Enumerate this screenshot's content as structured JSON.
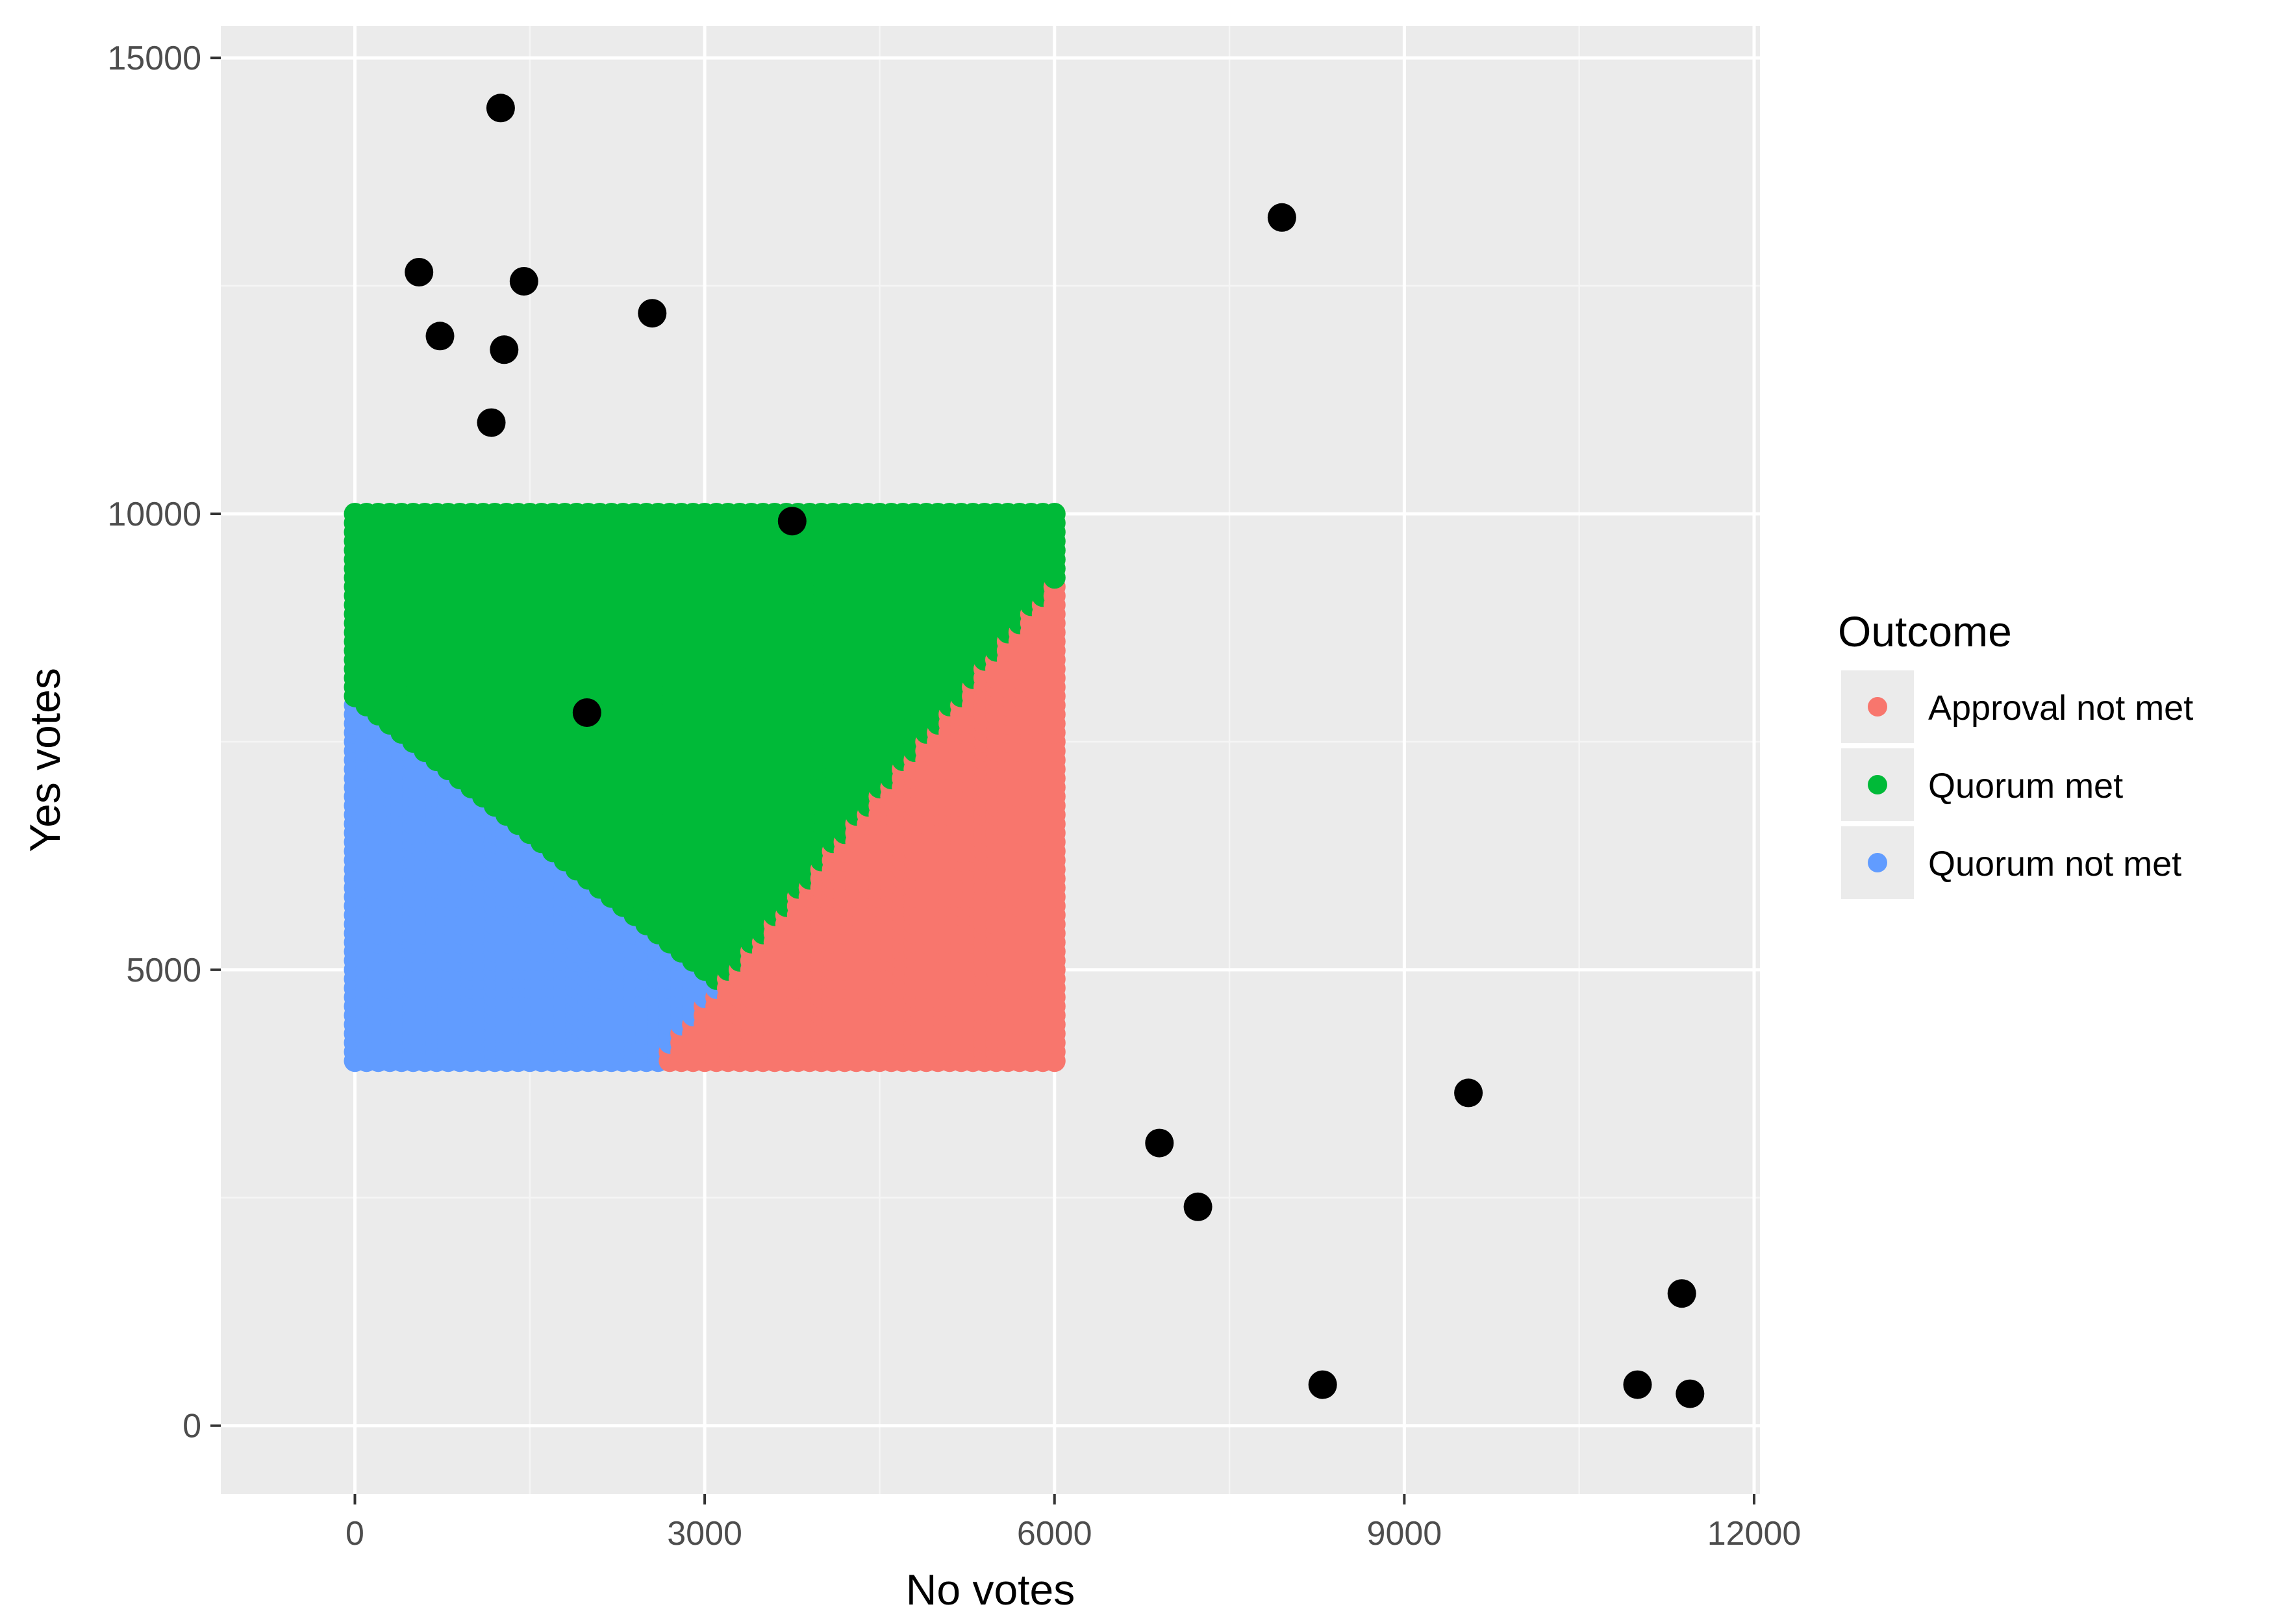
{
  "chart_data": {
    "type": "scatter",
    "xlabel": "No votes",
    "ylabel": "Yes votes",
    "xlim": [
      -1150,
      12050
    ],
    "ylim": [
      -750,
      15350
    ],
    "x_ticks": [
      0,
      3000,
      6000,
      9000,
      12000
    ],
    "x_tick_labels": [
      "0",
      "3000",
      "6000",
      "9000",
      "12000"
    ],
    "y_ticks": [
      0,
      5000,
      10000,
      15000
    ],
    "y_tick_labels": [
      "0",
      "5000",
      "10000",
      "15000"
    ],
    "grid": true,
    "legend": {
      "title": "Outcome",
      "placement": "right",
      "entries": [
        {
          "label": "Approval not met",
          "color": "#F8766D"
        },
        {
          "label": "Quorum met",
          "color": "#00BA38"
        },
        {
          "label": "Quorum not met",
          "color": "#619CFF"
        }
      ]
    },
    "region_grid": {
      "description_of_rule_only": false,
      "x_range": [
        0,
        6000
      ],
      "y_range": [
        4000,
        10000
      ],
      "step": 100,
      "boundary_approval": "no votes greater than 0.65 x yes votes gives Approval not met",
      "boundary_quorum": "yes + no below 8000 gives Quorum not met"
    },
    "observations": {
      "color": "#000000",
      "x": [
        1250,
        550,
        1450,
        730,
        1280,
        2550,
        1170,
        7950,
        3750,
        1990,
        9550,
        6900,
        7230,
        11380,
        8300,
        11000,
        11450
      ],
      "y": [
        14450,
        12650,
        12550,
        11950,
        11800,
        12200,
        11000,
        13250,
        9920,
        7820,
        3650,
        3100,
        2400,
        1450,
        450,
        450,
        350
      ]
    }
  }
}
